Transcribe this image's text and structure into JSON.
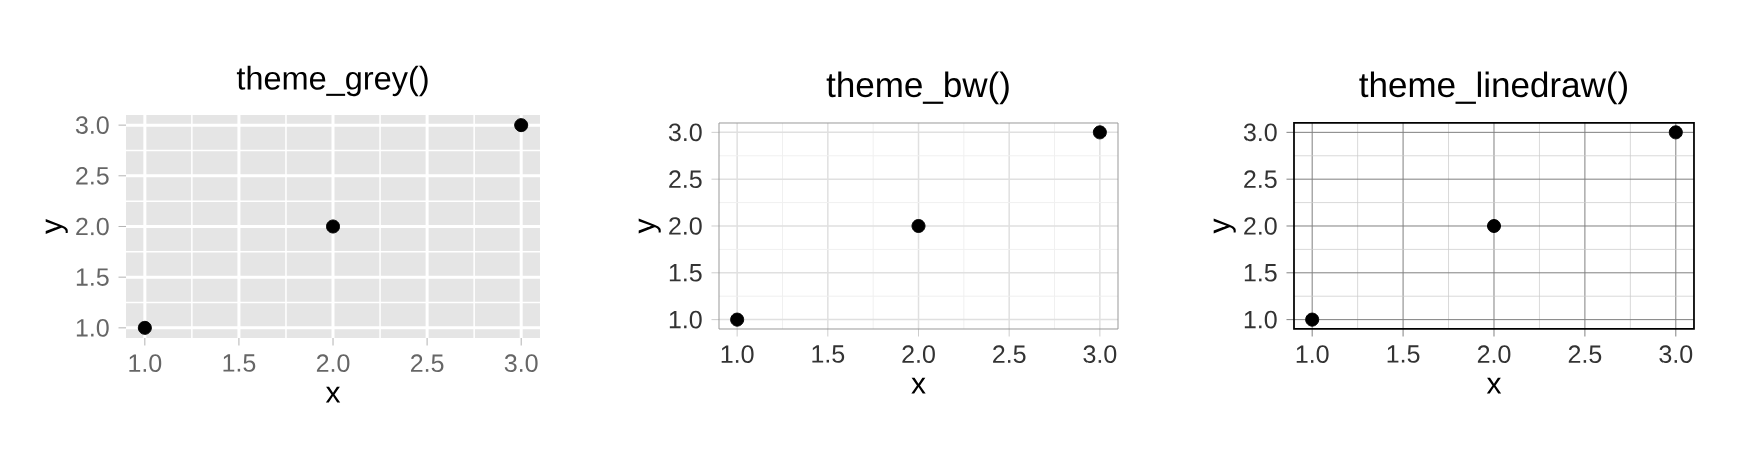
{
  "chart_data": [
    {
      "type": "scatter",
      "title": "theme_grey()",
      "xlabel": "x",
      "ylabel": "y",
      "x": [
        1,
        2,
        3
      ],
      "values": [
        1,
        2,
        3
      ],
      "color": "#000000",
      "marker": "circle",
      "grid": true,
      "xlim": [
        0.9,
        3.1
      ],
      "ylim": [
        0.9,
        3.1
      ],
      "xticks": [
        {
          "value": 1,
          "label": "1.0"
        },
        {
          "value": 1.5,
          "label": "1.5"
        },
        {
          "value": 2,
          "label": "2.0"
        },
        {
          "value": 2.5,
          "label": "2.5"
        },
        {
          "value": 3,
          "label": "3.0"
        }
      ],
      "yticks": [
        {
          "value": 1,
          "label": "1.0"
        },
        {
          "value": 1.5,
          "label": "1.5"
        },
        {
          "value": 2,
          "label": "2.0"
        },
        {
          "value": 2.5,
          "label": "2.5"
        },
        {
          "value": 3,
          "label": "3.0"
        }
      ]
    },
    {
      "type": "scatter",
      "title": "theme_bw()",
      "xlabel": "x",
      "ylabel": "y",
      "x": [
        1,
        2,
        3
      ],
      "values": [
        1,
        2,
        3
      ],
      "color": "#000000",
      "marker": "circle",
      "grid": true,
      "xlim": [
        0.9,
        3.1
      ],
      "ylim": [
        0.9,
        3.1
      ],
      "xticks": [
        {
          "value": 1,
          "label": "1.0"
        },
        {
          "value": 1.5,
          "label": "1.5"
        },
        {
          "value": 2,
          "label": "2.0"
        },
        {
          "value": 2.5,
          "label": "2.5"
        },
        {
          "value": 3,
          "label": "3.0"
        }
      ],
      "yticks": [
        {
          "value": 1,
          "label": "1.0"
        },
        {
          "value": 1.5,
          "label": "1.5"
        },
        {
          "value": 2,
          "label": "2.0"
        },
        {
          "value": 2.5,
          "label": "2.5"
        },
        {
          "value": 3,
          "label": "3.0"
        }
      ]
    },
    {
      "type": "scatter",
      "title": "theme_linedraw()",
      "xlabel": "x",
      "ylabel": "y",
      "x": [
        1,
        2,
        3
      ],
      "values": [
        1,
        2,
        3
      ],
      "color": "#000000",
      "marker": "circle",
      "grid": true,
      "xlim": [
        0.9,
        3.1
      ],
      "ylim": [
        0.9,
        3.1
      ],
      "xticks": [
        {
          "value": 1,
          "label": "1.0"
        },
        {
          "value": 1.5,
          "label": "1.5"
        },
        {
          "value": 2,
          "label": "2.0"
        },
        {
          "value": 2.5,
          "label": "2.5"
        },
        {
          "value": 3,
          "label": "3.0"
        }
      ],
      "yticks": [
        {
          "value": 1,
          "label": "1.0"
        },
        {
          "value": 1.5,
          "label": "1.5"
        },
        {
          "value": 2,
          "label": "2.0"
        },
        {
          "value": 2.5,
          "label": "2.5"
        },
        {
          "value": 3,
          "label": "3.0"
        }
      ]
    }
  ]
}
